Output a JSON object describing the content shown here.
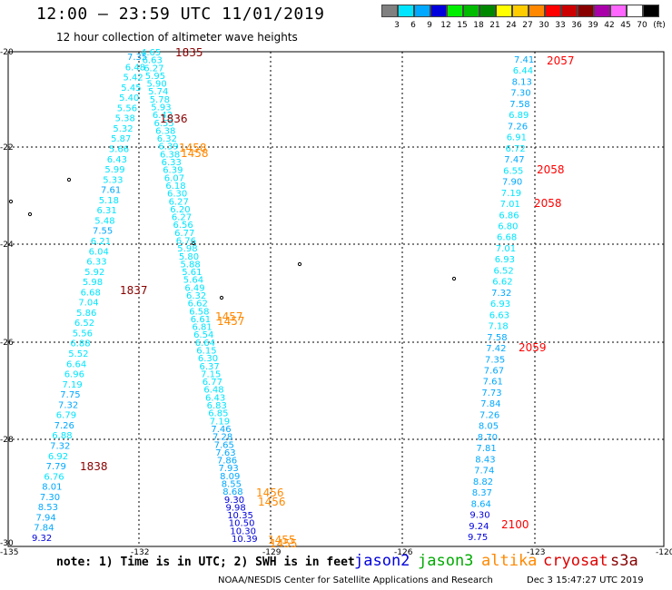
{
  "header": {
    "title": "12:00 – 23:59 UTC 11/01/2019",
    "subtitle": "12 hour collection of altimeter wave heights"
  },
  "legend": {
    "unit": "(ft)",
    "bins": [
      {
        "label": "3",
        "color": "#808080"
      },
      {
        "label": "6",
        "color": "#00e5ff"
      },
      {
        "label": "9",
        "color": "#00a8ff"
      },
      {
        "label": "12",
        "color": "#0000dd"
      },
      {
        "label": "15",
        "color": "#00ee00"
      },
      {
        "label": "18",
        "color": "#00bb00"
      },
      {
        "label": "21",
        "color": "#008800"
      },
      {
        "label": "24",
        "color": "#ffff00"
      },
      {
        "label": "27",
        "color": "#ffcc00"
      },
      {
        "label": "30",
        "color": "#ff8800"
      },
      {
        "label": "33",
        "color": "#ff0000"
      },
      {
        "label": "36",
        "color": "#cc0000"
      },
      {
        "label": "39",
        "color": "#880000"
      },
      {
        "label": "42",
        "color": "#aa00aa"
      },
      {
        "label": "45",
        "color": "#ff66ff"
      },
      {
        "label": "70",
        "color": "#ffffff"
      },
      {
        "label": "",
        "color": "#000000"
      }
    ]
  },
  "axes": {
    "lat_labels": [
      "-20",
      "-22",
      "-24",
      "-26",
      "-28",
      "-30"
    ],
    "lon_labels": [
      "-135",
      "-132",
      "-129",
      "-126",
      "-123",
      "-120"
    ]
  },
  "tracks": {
    "track_a": {
      "values": [
        "7.35",
        "6.48",
        "5.42",
        "5.45",
        "5.40",
        "5.56",
        "5.38",
        "5.32",
        "5.87",
        "5.66",
        "6.43",
        "5.99",
        "5.33",
        "7.61",
        "5.18",
        "6.31",
        "5.48",
        "7.55",
        "6.21",
        "6.04",
        "6.33",
        "5.92",
        "5.98",
        "6.68",
        "7.04",
        "5.86",
        "6.52",
        "5.56",
        "6.88",
        "5.52",
        "6.64",
        "6.96",
        "7.19",
        "7.75",
        "7.32",
        "6.79",
        "7.26",
        "6.88",
        "7.32",
        "6.92",
        "7.79",
        "6.76",
        "8.01",
        "7.30",
        "8.53",
        "7.94",
        "7.84",
        "9.32"
      ],
      "colors_note": "cyan to blue"
    },
    "track_b": {
      "values": [
        "4.65",
        "6.63",
        "6.27",
        "5.95",
        "5.90",
        "5.74",
        "5.78",
        "5.93",
        "6.42",
        "6.55",
        "6.38",
        "6.32",
        "6.39",
        "6.38",
        "6.33",
        "6.39",
        "6.07",
        "6.18",
        "6.30",
        "6.27",
        "6.20",
        "6.27",
        "6.56",
        "6.77",
        "6.76",
        "5.98",
        "5.80",
        "5.88",
        "5.61",
        "5.64",
        "6.49",
        "6.32",
        "6.62",
        "6.58",
        "6.61",
        "6.81",
        "6.54",
        "6.64",
        "6.15",
        "6.30",
        "6.37",
        "7.15",
        "6.77",
        "6.48",
        "6.43",
        "6.83",
        "6.85",
        "7.19",
        "7.46",
        "7.28",
        "7.65",
        "7.63",
        "7.86",
        "7.93",
        "8.09",
        "8.55",
        "8.68",
        "9.30",
        "9.98",
        "10.35",
        "10.50",
        "10.30",
        "10.39"
      ]
    },
    "track_c": {
      "values": [
        "7.41",
        "6.44",
        "8.13",
        "7.30",
        "7.58",
        "6.89",
        "7.26",
        "6.91",
        "6.72",
        "7.47",
        "6.55",
        "7.90",
        "7.19",
        "7.01",
        "6.86",
        "6.80",
        "6.68",
        "7.01",
        "6.93",
        "6.52",
        "6.62",
        "7.32",
        "6.93",
        "6.63",
        "7.18",
        "7.58",
        "7.42",
        "7.35",
        "7.67",
        "7.61",
        "7.73",
        "7.84",
        "7.26",
        "8.05",
        "8.70",
        "7.81",
        "8.43",
        "7.74",
        "8.82",
        "8.37",
        "8.64",
        "9.30",
        "9.24",
        "9.75"
      ]
    }
  },
  "time_labels": [
    {
      "text": "1835",
      "color": "#880000"
    },
    {
      "text": "1836",
      "color": "#880000"
    },
    {
      "text": "1837",
      "color": "#880000"
    },
    {
      "text": "1838",
      "color": "#880000"
    },
    {
      "text": "1458",
      "color": "#ff8800"
    },
    {
      "text": "1458",
      "color": "#ff8800"
    },
    {
      "text": "1457",
      "color": "#ff8800"
    },
    {
      "text": "1457",
      "color": "#ff8800"
    },
    {
      "text": "1456",
      "color": "#ff8800"
    },
    {
      "text": "1456",
      "color": "#ff8800"
    },
    {
      "text": "1455",
      "color": "#ff8800"
    },
    {
      "text": "1455",
      "color": "#ff8800"
    },
    {
      "text": "2057",
      "color": "#ff0000"
    },
    {
      "text": "2058",
      "color": "#ff0000"
    },
    {
      "text": "2058",
      "color": "#ff0000"
    },
    {
      "text": "2059",
      "color": "#ff0000"
    },
    {
      "text": "2100",
      "color": "#ff0000"
    }
  ],
  "footer": {
    "note": "note: 1) Time is in UTC; 2) SWH is in feet",
    "satellites": [
      {
        "name": "jason2",
        "color": "#0000dd"
      },
      {
        "name": "jason3",
        "color": "#00aa00"
      },
      {
        "name": "altika",
        "color": "#ff8800"
      },
      {
        "name": "cryosat",
        "color": "#dd0000"
      },
      {
        "name": "s3a",
        "color": "#880000"
      }
    ],
    "credit": "NOAA/NESDIS Center for Satellite Applications and Research",
    "timestamp": "Dec  3 15:47:27 UTC 2019"
  }
}
